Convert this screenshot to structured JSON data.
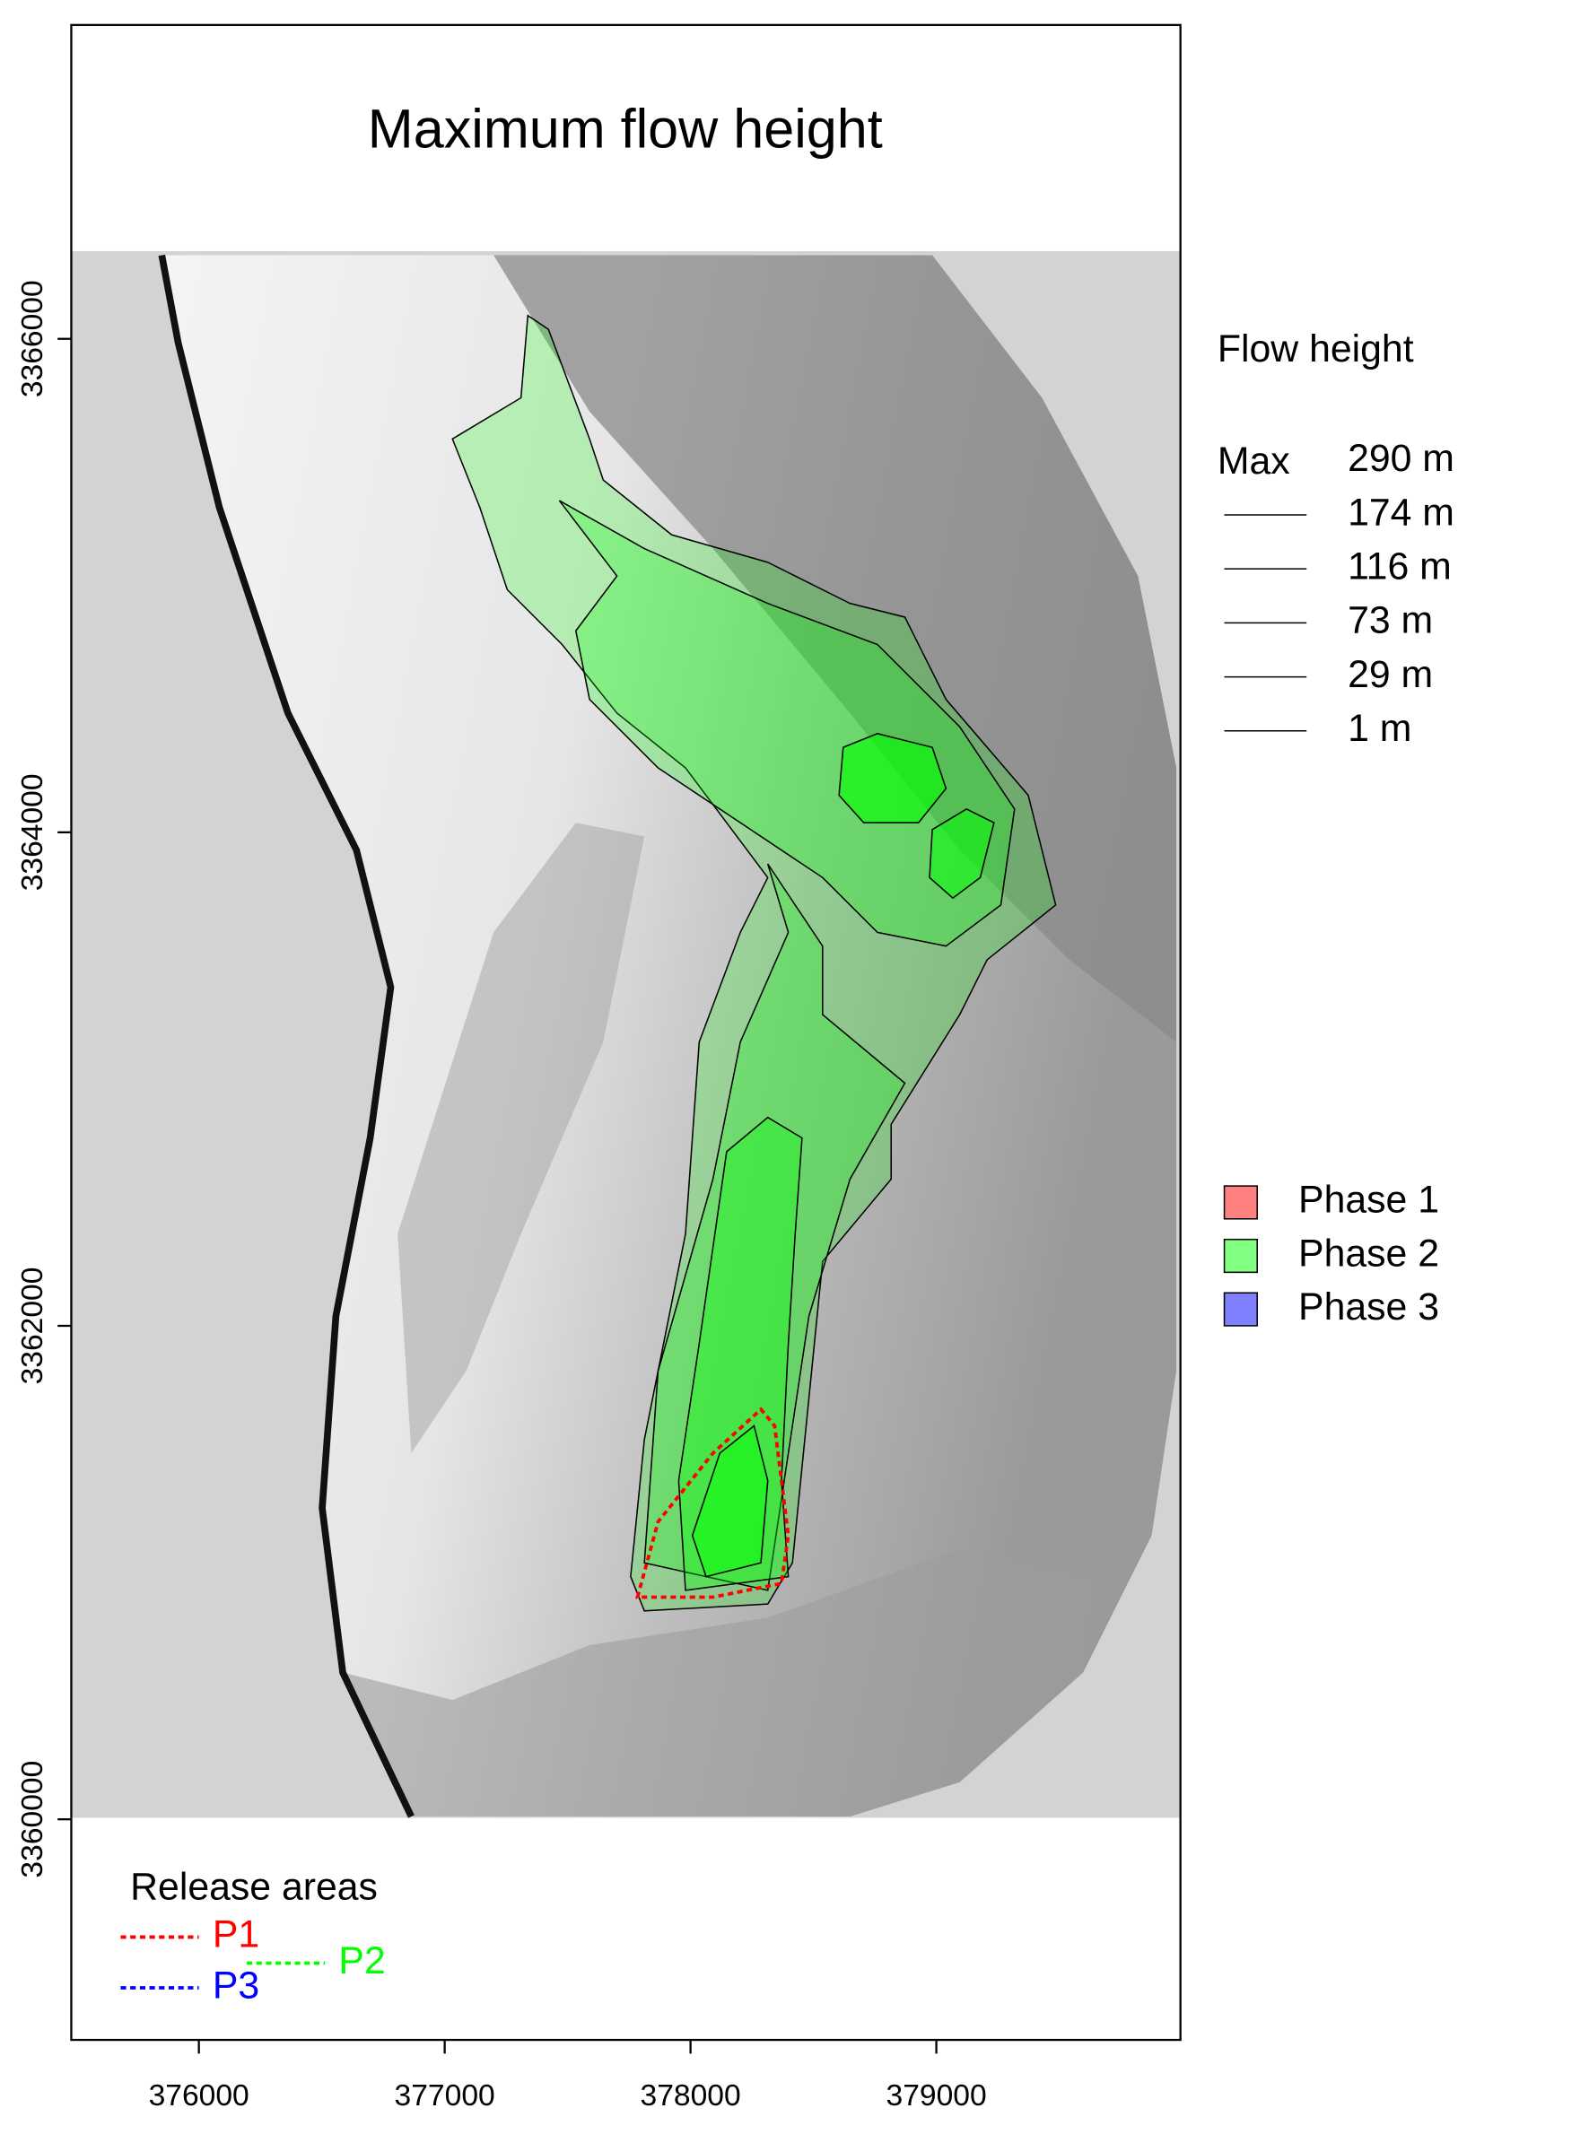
{
  "chart_data": {
    "type": "map",
    "title": "Maximum flow height",
    "xlim": [
      375481,
      379993
    ],
    "ylim": [
      3359106,
      3367272
    ],
    "xticks": [
      376000,
      377000,
      378000,
      379000
    ],
    "yticks": [
      3360000,
      3362000,
      3364000,
      3366000
    ]
  },
  "flow_legend": {
    "title": "Flow height",
    "max_label": "Max",
    "levels": [
      "290 m",
      "174 m",
      "116 m",
      "73 m",
      "29 m",
      "1 m"
    ]
  },
  "phase_legend": {
    "items": [
      {
        "name": "Phase 1",
        "color": "#ff8080"
      },
      {
        "name": "Phase 2",
        "color": "#80ff80"
      },
      {
        "name": "Phase 3",
        "color": "#8080ff"
      }
    ]
  },
  "release_legend": {
    "title": "Release areas",
    "items": [
      {
        "name": "P1",
        "color": "#ff0000"
      },
      {
        "name": "P2",
        "color": "#00ff00"
      },
      {
        "name": "P3",
        "color": "#0000ff"
      }
    ]
  }
}
